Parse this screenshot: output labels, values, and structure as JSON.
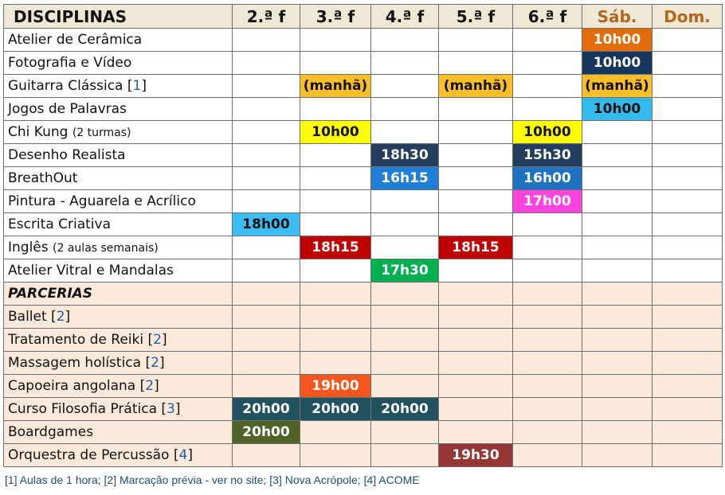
{
  "header": {
    "title": "DISCIPLINAS",
    "days": [
      "2.ª f",
      "3.ª f",
      "4.ª f",
      "5.ª f",
      "6.ª f",
      "Sáb.",
      "Dom."
    ]
  },
  "rows": [
    {
      "name": "Atelier de Cerâmica",
      "cells": {
        "5": {
          "text": "10h00",
          "color": "#e36c0a",
          "fg": "#ffffff"
        }
      }
    },
    {
      "name": "Fotografia e Vídeo",
      "cells": {
        "5": {
          "text": "10h00",
          "color": "#17365d",
          "fg": "#ffffff"
        }
      }
    },
    {
      "name": "Guitarra Clássica",
      "ref": "1",
      "cells": {
        "1": {
          "text": "(manhã)",
          "color": "#fabf26",
          "fg": "#111111"
        },
        "3": {
          "text": "(manhã)",
          "color": "#fabf26",
          "fg": "#111111"
        },
        "5": {
          "text": "(manhã)",
          "color": "#fabf26",
          "fg": "#111111"
        }
      }
    },
    {
      "name": "Jogos de Palavras",
      "cells": {
        "5": {
          "text": "10h00",
          "color": "#33bbee",
          "fg": "#111111"
        }
      }
    },
    {
      "name": "Chi Kung",
      "note": "(2 turmas)",
      "cells": {
        "1": {
          "text": "10h00",
          "color": "#ffff00",
          "fg": "#111111"
        },
        "4": {
          "text": "10h00",
          "color": "#ffff00",
          "fg": "#111111"
        }
      }
    },
    {
      "name": "Desenho Realista",
      "cells": {
        "2": {
          "text": "18h30",
          "color": "#233e5e",
          "fg": "#ffffff"
        },
        "4": {
          "text": "15h30",
          "color": "#233e5e",
          "fg": "#ffffff"
        }
      }
    },
    {
      "name": "BreathOut",
      "cells": {
        "2": {
          "text": "16h15",
          "color": "#1f7fd6",
          "fg": "#ffffff"
        },
        "4": {
          "text": "16h00",
          "color": "#1f72c2",
          "fg": "#ffffff"
        }
      }
    },
    {
      "name": "Pintura - Aguarela e Acrílico",
      "cells": {
        "4": {
          "text": "17h00",
          "color": "#ff44dd",
          "fg": "#ffffff"
        }
      }
    },
    {
      "name": "Escrita Criativa",
      "cells": {
        "0": {
          "text": "18h00",
          "color": "#3bbcf2",
          "fg": "#111111"
        }
      }
    },
    {
      "name": "Inglês",
      "note": "(2 aulas semanais)",
      "cells": {
        "1": {
          "text": "18h15",
          "color": "#c00000",
          "fg": "#ffffff"
        },
        "3": {
          "text": "18h15",
          "color": "#c00000",
          "fg": "#ffffff"
        }
      }
    },
    {
      "name": "Atelier Vitral e Mandalas",
      "cells": {
        "2": {
          "text": "17h30",
          "color": "#00b050",
          "fg": "#ffffff"
        }
      }
    }
  ],
  "partners": {
    "title": "PARCERIAS",
    "rows": [
      {
        "name": "Ballet",
        "ref": "2",
        "cells": {}
      },
      {
        "name": "Tratamento de Reiki",
        "ref": "2",
        "cells": {}
      },
      {
        "name": "Massagem holística",
        "ref": "2",
        "cells": {}
      },
      {
        "name": "Capoeira angolana",
        "ref": "2",
        "cells": {
          "1": {
            "text": "19h00",
            "color": "#f4561e",
            "fg": "#ffffff"
          }
        }
      },
      {
        "name": "Curso Filosofia Prática",
        "ref": "3",
        "cells": {
          "0": {
            "text": "20h00",
            "color": "#21505e",
            "fg": "#ffffff"
          },
          "1": {
            "text": "20h00",
            "color": "#21505e",
            "fg": "#ffffff"
          },
          "2": {
            "text": "20h00",
            "color": "#21505e",
            "fg": "#ffffff"
          }
        }
      },
      {
        "name": "Boardgames",
        "cells": {
          "0": {
            "text": "20h00",
            "color": "#4f6228",
            "fg": "#ffffff"
          }
        }
      },
      {
        "name": "Orquestra de Percussão",
        "ref": "4",
        "cells": {
          "3": {
            "text": "19h30",
            "color": "#963634",
            "fg": "#ffffff"
          }
        }
      }
    ]
  },
  "legend": "[1] Aulas de 1 hora; [2] Marcação prévia - ver no site; [3] Nova Acrópole; [4] ACOME"
}
